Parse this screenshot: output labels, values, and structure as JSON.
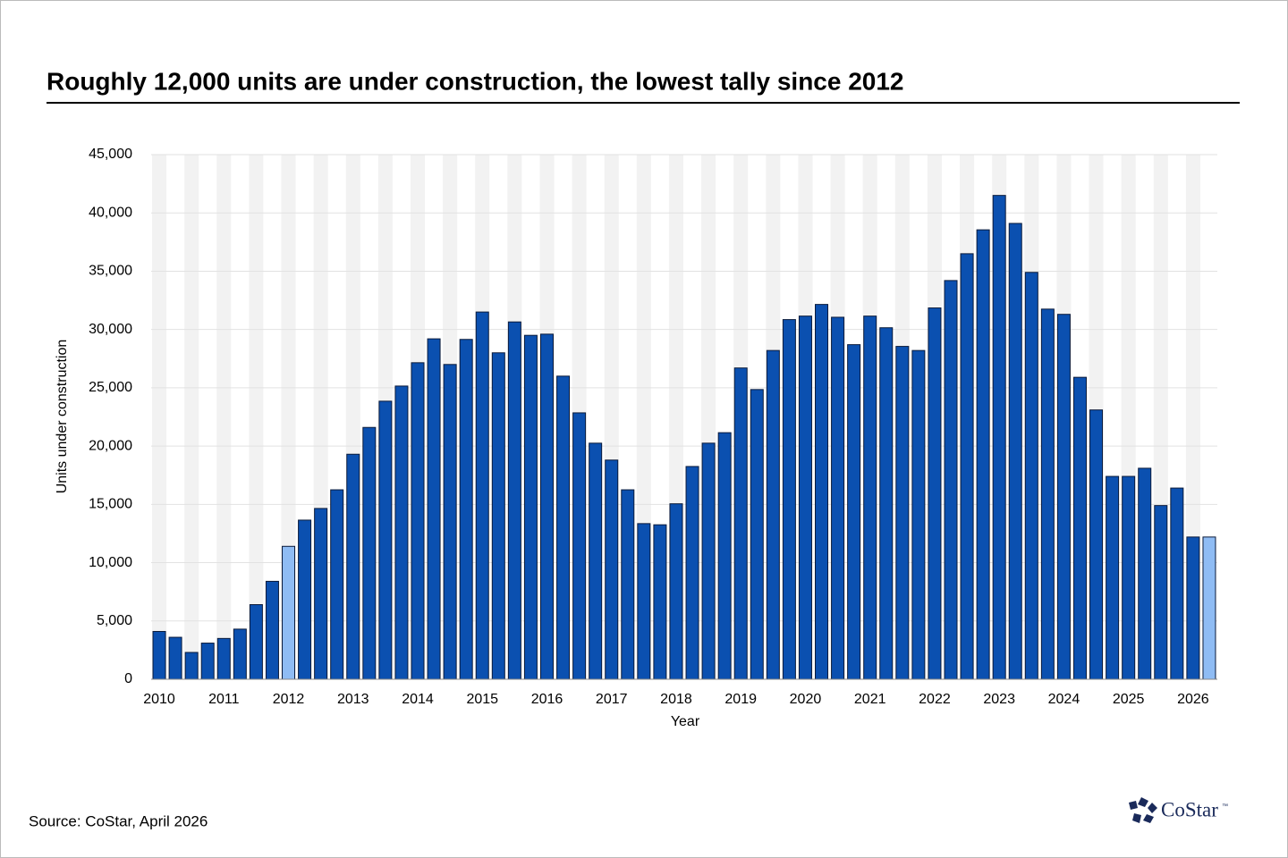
{
  "chart_data": {
    "type": "bar",
    "title": "Roughly 12,000 units are under construction, the lowest tally since 2012",
    "y_label": "Units under construction",
    "x_label": "Year",
    "source": "Source: CoStar, April 2026",
    "logo": "CoStar",
    "logo_mark": "™",
    "categories": [
      "2010",
      null,
      null,
      null,
      "2011",
      null,
      null,
      null,
      "2012",
      null,
      null,
      null,
      "2013",
      null,
      null,
      null,
      "2014",
      null,
      null,
      null,
      "2015",
      null,
      null,
      null,
      "2016",
      null,
      null,
      null,
      "2017",
      null,
      null,
      null,
      "2018",
      null,
      null,
      null,
      "2019",
      null,
      null,
      null,
      "2020",
      null,
      null,
      null,
      "2021",
      null,
      null,
      null,
      "2022",
      null,
      null,
      null,
      "2023",
      null,
      null,
      null,
      "2024",
      null,
      null,
      null,
      "2025",
      null,
      null,
      null,
      "2026",
      null
    ],
    "values": [
      4100,
      3600,
      2300,
      3100,
      3500,
      4300,
      6400,
      8400,
      11400,
      13650,
      14650,
      16250,
      19300,
      21600,
      23850,
      25150,
      27150,
      29200,
      27000,
      29150,
      31500,
      28000,
      30650,
      29500,
      29600,
      26000,
      22850,
      20250,
      18800,
      16250,
      13350,
      13250,
      15050,
      18250,
      20250,
      21150,
      26700,
      24850,
      28200,
      30850,
      31150,
      32150,
      31050,
      28700,
      31150,
      30150,
      28550,
      28200,
      31850,
      34200,
      36500,
      38550,
      41500,
      39100,
      34900,
      31750,
      31300,
      25900,
      23100,
      17400,
      17400,
      18100,
      14900,
      16400,
      12200,
      12200
    ],
    "colors": [
      "#0b50b0",
      "#0b50b0",
      "#0b50b0",
      "#0b50b0",
      "#0b50b0",
      "#0b50b0",
      "#0b50b0",
      "#0b50b0",
      "#8fbcf4",
      "#0b50b0",
      "#0b50b0",
      "#0b50b0",
      "#0b50b0",
      "#0b50b0",
      "#0b50b0",
      "#0b50b0",
      "#0b50b0",
      "#0b50b0",
      "#0b50b0",
      "#0b50b0",
      "#0b50b0",
      "#0b50b0",
      "#0b50b0",
      "#0b50b0",
      "#0b50b0",
      "#0b50b0",
      "#0b50b0",
      "#0b50b0",
      "#0b50b0",
      "#0b50b0",
      "#0b50b0",
      "#0b50b0",
      "#0b50b0",
      "#0b50b0",
      "#0b50b0",
      "#0b50b0",
      "#0b50b0",
      "#0b50b0",
      "#0b50b0",
      "#0b50b0",
      "#0b50b0",
      "#0b50b0",
      "#0b50b0",
      "#0b50b0",
      "#0b50b0",
      "#0b50b0",
      "#0b50b0",
      "#0b50b0",
      "#0b50b0",
      "#0b50b0",
      "#0b50b0",
      "#0b50b0",
      "#0b50b0",
      "#0b50b0",
      "#0b50b0",
      "#0b50b0",
      "#0b50b0",
      "#0b50b0",
      "#0b50b0",
      "#0b50b0",
      "#0b50b0",
      "#0b50b0",
      "#0b50b0",
      "#0b50b0",
      "#0b50b0",
      "#8fbcf4"
    ],
    "ylim": [
      0,
      45000
    ],
    "yticks": [
      0,
      {
        "value": 5000,
        "label": "5,000"
      },
      {
        "value": 10000,
        "label": "10,000"
      },
      {
        "value": 15000,
        "label": "15,000"
      },
      {
        "value": 20000,
        "label": "20,000"
      },
      {
        "value": 25000,
        "label": "25,000"
      },
      {
        "value": 30000,
        "label": "30,000"
      },
      {
        "value": 35000,
        "label": "35,000"
      },
      {
        "value": 40000,
        "label": "40,000"
      },
      {
        "value": 45000,
        "label": "45,000"
      }
    ],
    "grid": true
  }
}
